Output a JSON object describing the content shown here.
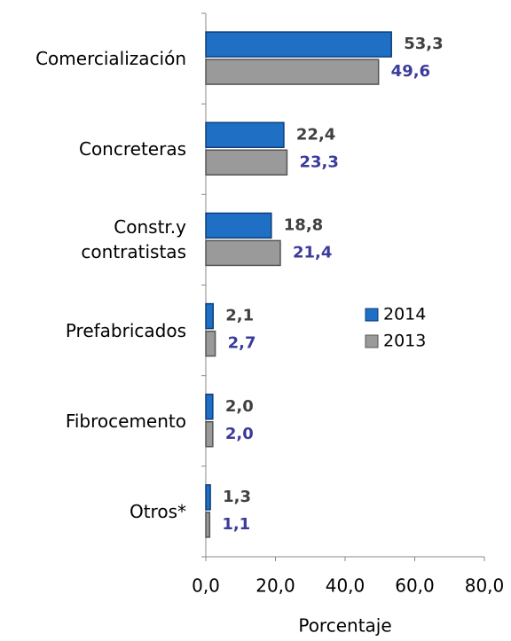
{
  "chart_data": {
    "type": "bar",
    "orientation": "horizontal",
    "categories": [
      "Comercialización",
      "Concreteras",
      "Constr.y\ncontratistas",
      "Prefabricados",
      "Fibrocemento",
      "Otros*"
    ],
    "series": [
      {
        "name": "2014",
        "color": "#1f6fc4",
        "values": [
          53.3,
          22.4,
          18.8,
          2.1,
          2.0,
          1.3
        ],
        "value_labels": [
          "53,3",
          "22,4",
          "18,8",
          "2,1",
          "2,0",
          "1,3"
        ],
        "label_color": "#404040"
      },
      {
        "name": "2013",
        "color": "#9a9a9a",
        "values": [
          49.6,
          23.3,
          21.4,
          2.7,
          2.0,
          1.1
        ],
        "value_labels": [
          "49,6",
          "23,3",
          "21,4",
          "2,7",
          "2,0",
          "1,1"
        ],
        "label_color": "#3b3b9c"
      }
    ],
    "xlabel": "Porcentaje",
    "xlim": [
      0,
      80
    ],
    "xticks": [
      {
        "value": 0,
        "label": "0,0"
      },
      {
        "value": 20,
        "label": "20,0"
      },
      {
        "value": 40,
        "label": "40,0"
      },
      {
        "value": 60,
        "label": "60,0"
      },
      {
        "value": 80,
        "label": "80,0"
      }
    ],
    "legend": "right"
  }
}
